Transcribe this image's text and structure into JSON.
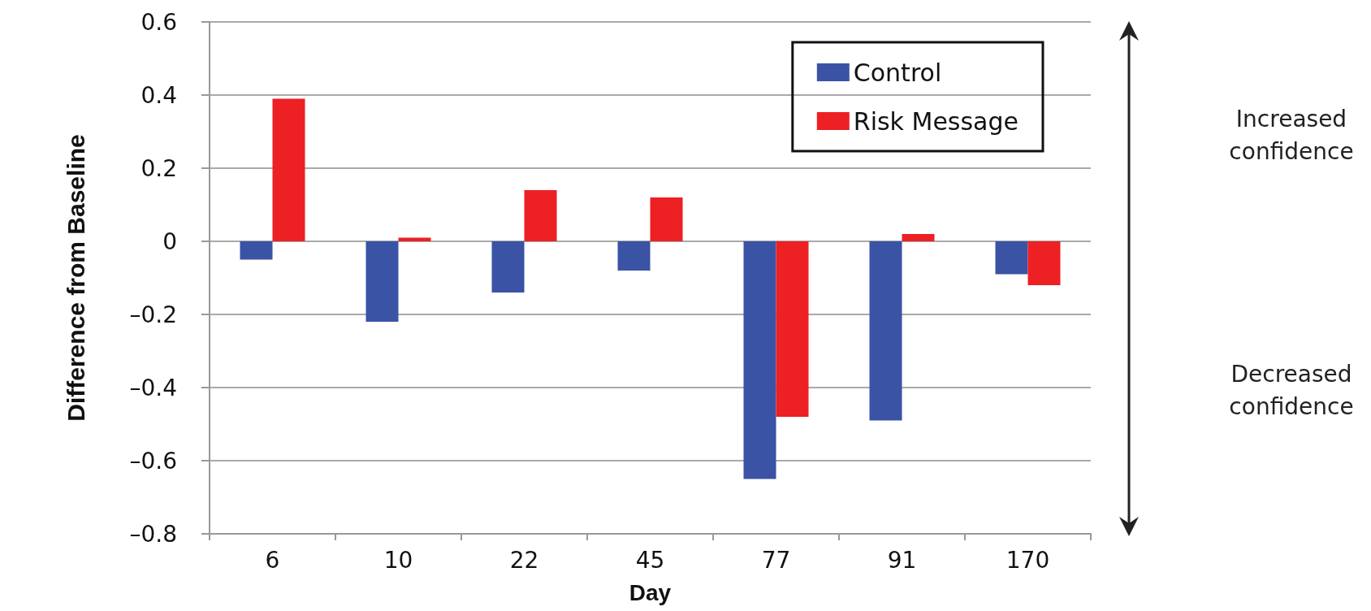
{
  "chart_data": {
    "type": "bar",
    "xlabel": "Day",
    "ylabel": "Difference from Baseline",
    "categories": [
      "6",
      "10",
      "22",
      "45",
      "77",
      "91",
      "170"
    ],
    "series": [
      {
        "name": "Control",
        "color": "#3a53a4",
        "values": [
          -0.05,
          -0.22,
          -0.14,
          -0.08,
          -0.65,
          -0.49,
          -0.09
        ]
      },
      {
        "name": "Risk Message",
        "color": "#ed2024",
        "values": [
          0.39,
          0.01,
          0.14,
          0.12,
          -0.48,
          0.02,
          -0.12
        ]
      }
    ],
    "ylim": [
      -0.8,
      0.6
    ],
    "yticks": [
      {
        "value": -0.8,
        "label": "–0.8"
      },
      {
        "value": -0.6,
        "label": "–0.6"
      },
      {
        "value": -0.4,
        "label": "–0.4"
      },
      {
        "value": -0.2,
        "label": "–0.2"
      },
      0,
      0.2,
      0.4,
      0.6
    ],
    "grid": "y",
    "legend": "top right",
    "annotations": [
      "Increased\nconfidence",
      "Decreased\nconfidence"
    ]
  }
}
